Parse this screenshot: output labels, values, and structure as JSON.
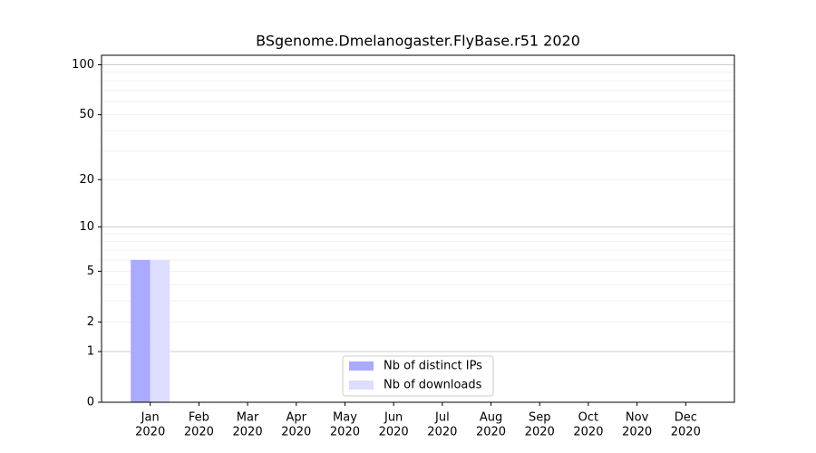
{
  "chart_data": {
    "type": "bar",
    "title": "BSgenome.Dmelanogaster.FlyBase.r51 2020",
    "categories": [
      "Jan",
      "Feb",
      "Mar",
      "Apr",
      "May",
      "Jun",
      "Jul",
      "Aug",
      "Sep",
      "Oct",
      "Nov",
      "Dec"
    ],
    "year": "2020",
    "series": [
      {
        "name": "Nb of distinct IPs",
        "color": "#aaaaff",
        "values": [
          6,
          0,
          0,
          0,
          0,
          0,
          0,
          0,
          0,
          0,
          0,
          0
        ]
      },
      {
        "name": "Nb of downloads",
        "color": "#ddddff",
        "values": [
          6,
          0,
          0,
          0,
          0,
          0,
          0,
          0,
          0,
          0,
          0,
          0
        ]
      }
    ],
    "scale": "log1p",
    "ylim": [
      0,
      114
    ],
    "yticks": [
      0,
      1,
      2,
      5,
      10,
      20,
      50,
      100
    ],
    "major_grid": [
      1,
      10,
      100
    ],
    "minor_grid": [
      2,
      3,
      4,
      5,
      6,
      7,
      8,
      9,
      20,
      30,
      40,
      50,
      60,
      70,
      80,
      90
    ],
    "grid": true,
    "legend": "lower center"
  }
}
